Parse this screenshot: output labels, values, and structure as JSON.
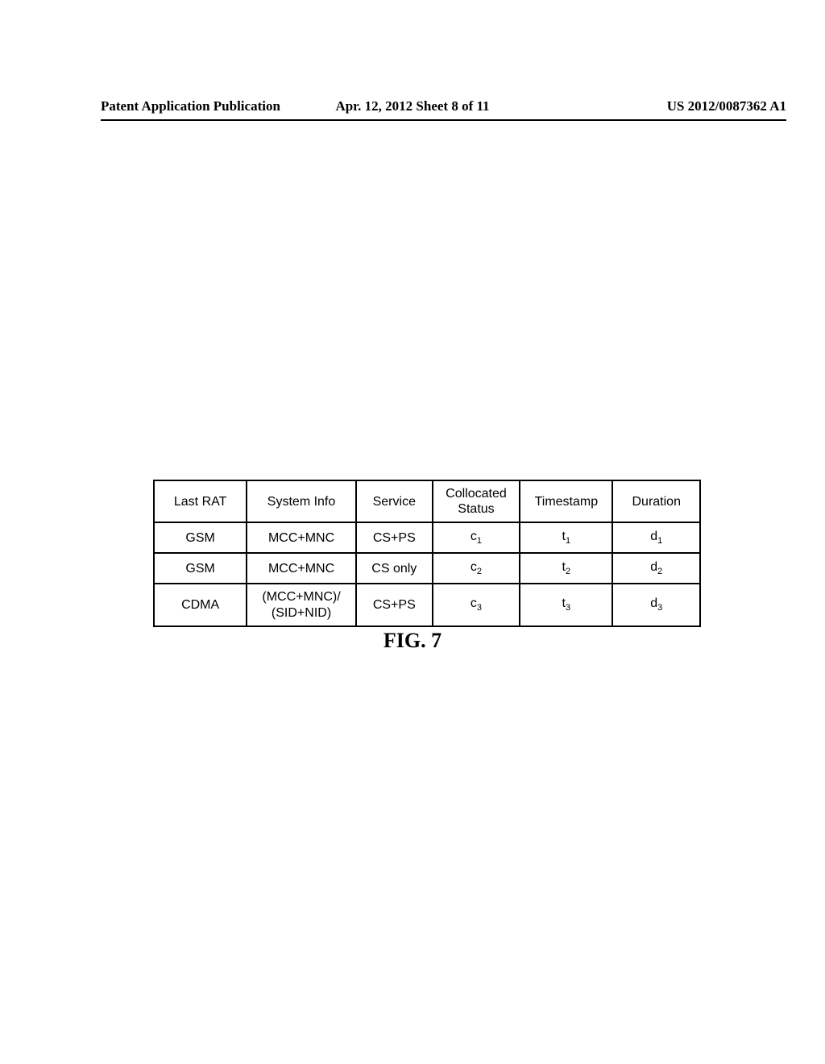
{
  "header": {
    "left": "Patent Application Publication",
    "center": "Apr. 12, 2012  Sheet 8 of 11",
    "right": "US 2012/0087362 A1"
  },
  "table": {
    "columns": [
      {
        "label": "Last RAT",
        "width_pct": 17
      },
      {
        "label_line1": "System Info",
        "width_pct": 20
      },
      {
        "label": "Service",
        "width_pct": 14
      },
      {
        "label_line1": "Collocated",
        "label_line2": "Status",
        "width_pct": 16
      },
      {
        "label": "Timestamp",
        "width_pct": 17
      },
      {
        "label": "Duration",
        "width_pct": 16
      }
    ],
    "rows": [
      {
        "last_rat": "GSM",
        "system_info": "MCC+MNC",
        "service": "CS+PS",
        "collocated_base": "c",
        "collocated_sub": "1",
        "timestamp_base": "t",
        "timestamp_sub": "1",
        "duration_base": "d",
        "duration_sub": "1"
      },
      {
        "last_rat": "GSM",
        "system_info": "MCC+MNC",
        "service": "CS only",
        "collocated_base": "c",
        "collocated_sub": "2",
        "timestamp_base": "t",
        "timestamp_sub": "2",
        "duration_base": "d",
        "duration_sub": "2"
      },
      {
        "last_rat": "CDMA",
        "system_info_line1": "(MCC+MNC)/",
        "system_info_line2": "(SID+NID)",
        "service": "CS+PS",
        "collocated_base": "c",
        "collocated_sub": "3",
        "timestamp_base": "t",
        "timestamp_sub": "3",
        "duration_base": "d",
        "duration_sub": "3"
      }
    ],
    "border_color": "#000000",
    "border_width": 2,
    "cell_font_family": "Arial",
    "cell_font_size": 16,
    "background_color": "#ffffff"
  },
  "figure_caption": "FIG. 7",
  "page_bg": "#ffffff"
}
